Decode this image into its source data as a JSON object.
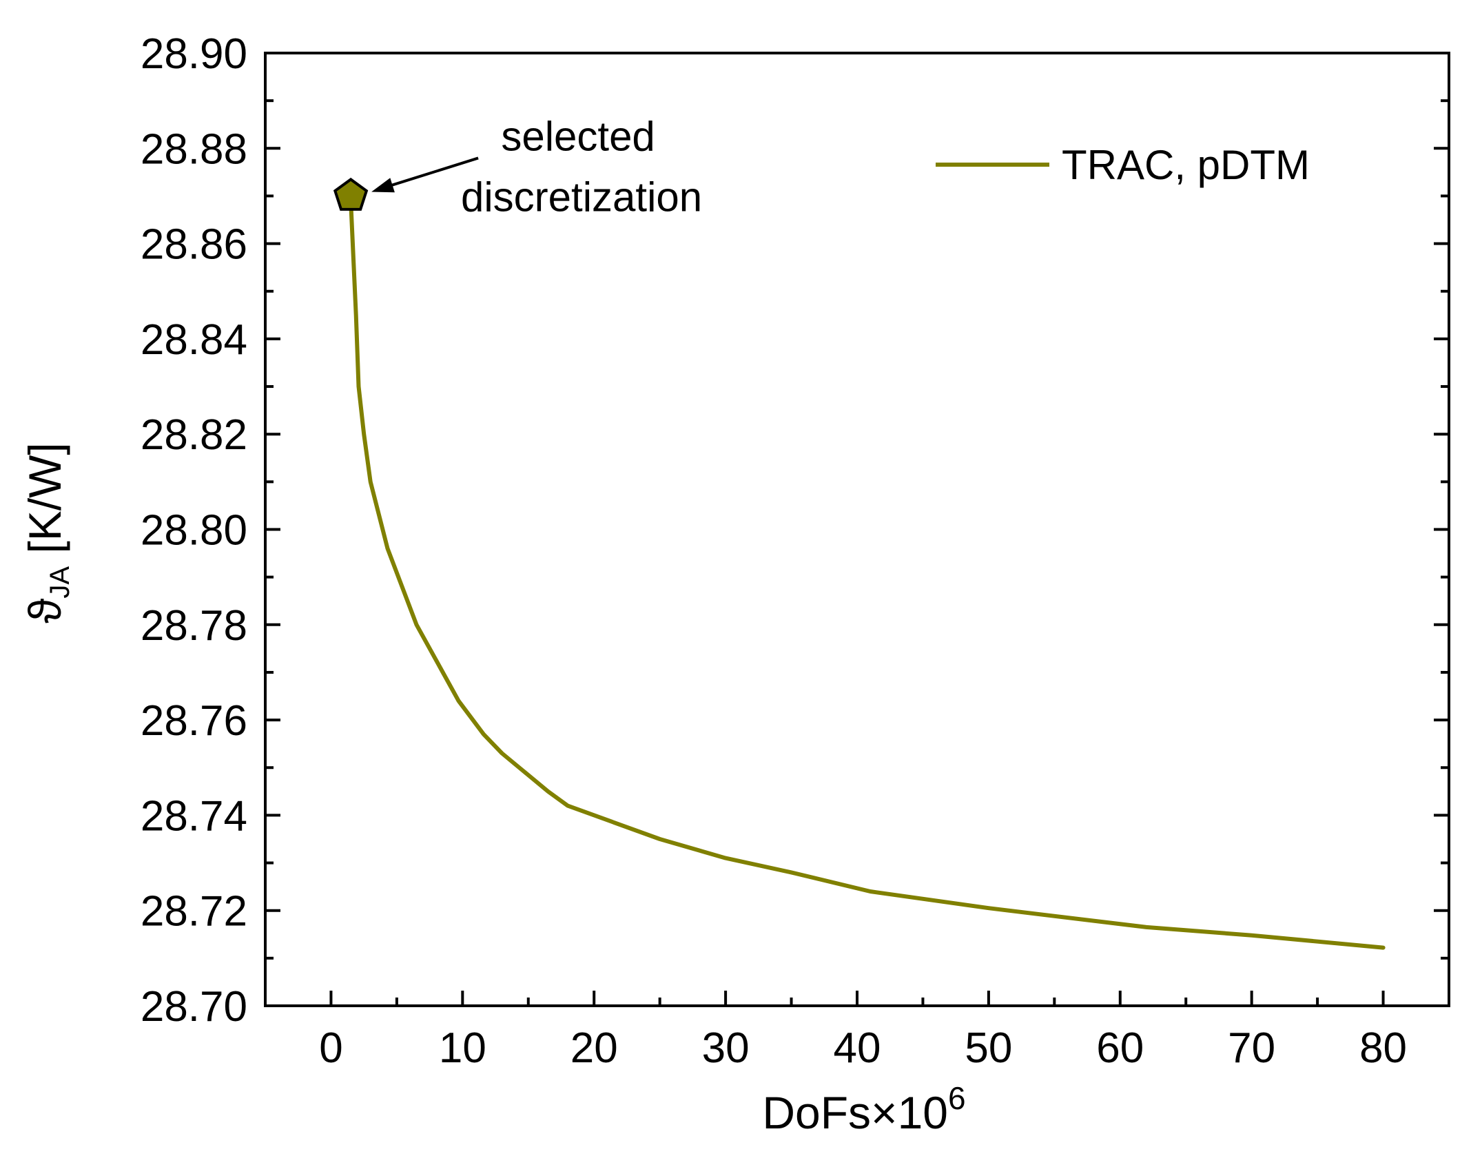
{
  "chart_data": {
    "type": "line",
    "title": "",
    "xlabel": {
      "main": "DoFs×10",
      "sup": "6"
    },
    "ylabel": {
      "symbol": "ϑ",
      "sub": "JA",
      "unit": "[K/W]"
    },
    "xlim": [
      -5,
      85
    ],
    "ylim": [
      28.7,
      28.9
    ],
    "xticks": [
      0,
      10,
      20,
      30,
      40,
      50,
      60,
      70,
      80
    ],
    "xtick_labels": [
      "0",
      "10",
      "20",
      "30",
      "40",
      "50",
      "60",
      "70",
      "80"
    ],
    "yticks": [
      28.7,
      28.72,
      28.74,
      28.76,
      28.78,
      28.8,
      28.82,
      28.84,
      28.86,
      28.88,
      28.9
    ],
    "ytick_labels": [
      "28.70",
      "28.72",
      "28.74",
      "28.76",
      "28.78",
      "28.80",
      "28.82",
      "28.84",
      "28.86",
      "28.88",
      "28.90"
    ],
    "grid": false,
    "legend_position": "top-right",
    "series": [
      {
        "name": "TRAC, pDTM",
        "color": "#808000",
        "x": [
          1.5,
          1.9,
          2.1,
          2.5,
          3.0,
          4.3,
          6.5,
          9.7,
          11.6,
          13.0,
          16.5,
          18.0,
          25.0,
          30.0,
          35.0,
          41.0,
          50.0,
          62.0,
          70.0,
          80.0
        ],
        "y": [
          28.869,
          28.845,
          28.83,
          28.82,
          28.81,
          28.796,
          28.78,
          28.764,
          28.757,
          28.753,
          28.745,
          28.742,
          28.735,
          28.731,
          28.728,
          28.724,
          28.7205,
          28.7165,
          28.7148,
          28.7122
        ]
      }
    ],
    "annotations": [
      {
        "lines": [
          "selected",
          "discretization"
        ],
        "point": {
          "x": 1.5,
          "y": 28.87
        },
        "marker": "pentagon",
        "marker_color": "#808000"
      }
    ]
  }
}
